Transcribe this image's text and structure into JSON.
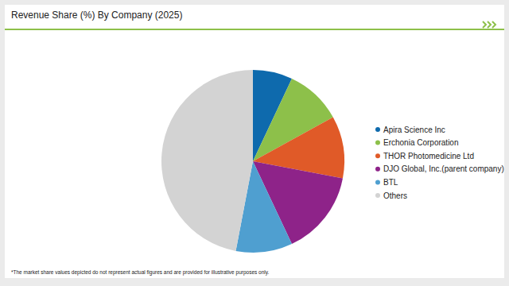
{
  "chart_data": {
    "type": "pie",
    "title": "Revenue Share (%) By Company (2025)",
    "categories": [
      "Apira Science Inc",
      "Erchonia Corporation",
      "THOR Photomedicine Ltd",
      "DJO Global, Inc.(parent company)",
      "BTL",
      "Others"
    ],
    "values": [
      7,
      10,
      11,
      15,
      10,
      47
    ],
    "colors": [
      "#0e6aad",
      "#8dc04a",
      "#e05a28",
      "#8e2389",
      "#4f9fd0",
      "#d3d3d3"
    ],
    "legend": "right",
    "footnote": "*The market share values depicted do not represent actual figures and are provided for illustrative purposes only."
  }
}
